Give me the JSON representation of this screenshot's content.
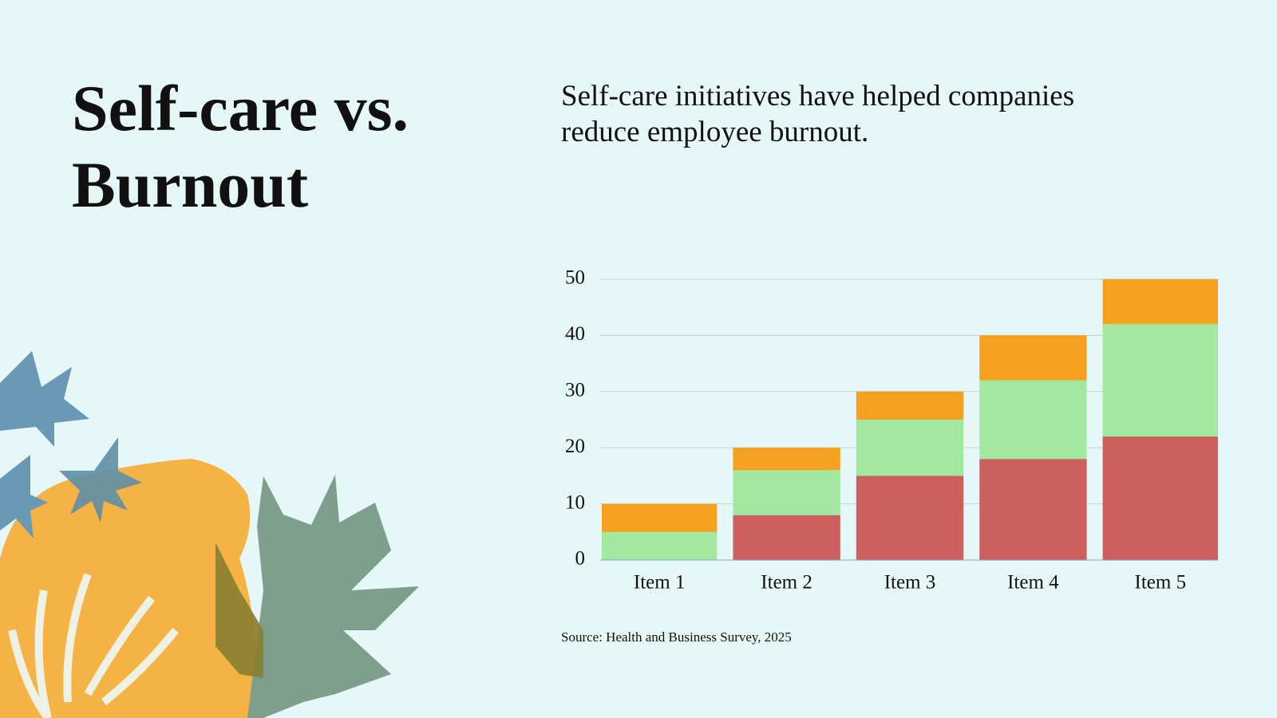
{
  "title": "Self-care vs. Burnout",
  "subtitle": "Self-care initiatives have helped companies reduce employee burnout.",
  "chart_data": {
    "type": "stacked_bar",
    "categories": [
      "Item 1",
      "Item 2",
      "Item 3",
      "Item 4",
      "Item 5"
    ],
    "series": [
      {
        "color": "#cd5f5f",
        "values": [
          0,
          8,
          15,
          18,
          22
        ]
      },
      {
        "color": "#a2e89e",
        "values": [
          5,
          8,
          10,
          14,
          20
        ]
      },
      {
        "color": "#f5a01f",
        "values": [
          5,
          4,
          5,
          8,
          8
        ]
      }
    ],
    "ylim": [
      0,
      50
    ],
    "yticks": [
      0,
      10,
      20,
      30,
      40,
      50
    ],
    "grid": true,
    "source": "Source: Health and Business Survey, 2025"
  }
}
